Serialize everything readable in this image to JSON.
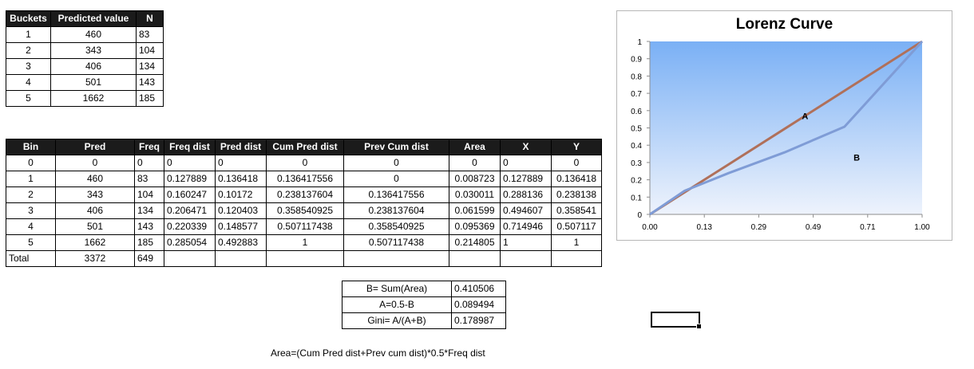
{
  "buckets": {
    "headers": [
      "Buckets",
      "Predicted value",
      "N"
    ],
    "rows": [
      [
        "1",
        "460",
        "83"
      ],
      [
        "2",
        "343",
        "104"
      ],
      [
        "3",
        "406",
        "134"
      ],
      [
        "4",
        "501",
        "143"
      ],
      [
        "5",
        "1662",
        "185"
      ]
    ]
  },
  "calc": {
    "headers": [
      "Bin",
      "Pred",
      "Freq",
      "Freq dist",
      "Pred dist",
      "Cum Pred dist",
      "Prev Cum dist",
      "Area",
      "X",
      "Y"
    ],
    "rows": [
      [
        "0",
        "0",
        "0",
        "0",
        "0",
        "0",
        "0",
        "0",
        "0",
        "0"
      ],
      [
        "1",
        "460",
        "83",
        "0.127889",
        "0.136418",
        "0.136417556",
        "0",
        "0.008723",
        "0.127889",
        "0.136418"
      ],
      [
        "2",
        "343",
        "104",
        "0.160247",
        "0.10172",
        "0.238137604",
        "0.136417556",
        "0.030011",
        "0.288136",
        "0.238138"
      ],
      [
        "3",
        "406",
        "134",
        "0.206471",
        "0.120403",
        "0.358540925",
        "0.238137604",
        "0.061599",
        "0.494607",
        "0.358541"
      ],
      [
        "4",
        "501",
        "143",
        "0.220339",
        "0.148577",
        "0.507117438",
        "0.358540925",
        "0.095369",
        "0.714946",
        "0.507117"
      ],
      [
        "5",
        "1662",
        "185",
        "0.285054",
        "0.492883",
        "1",
        "0.507117438",
        "0.214805",
        "1",
        "1"
      ]
    ],
    "total": [
      "Total",
      "3372",
      "649",
      "",
      "",
      "",
      "",
      "",
      "",
      ""
    ]
  },
  "gini": {
    "rows": [
      [
        "B= Sum(Area)",
        "0.410506"
      ],
      [
        "A=0.5-B",
        "0.089494"
      ],
      [
        "Gini= A/(A+B)",
        "0.178987"
      ]
    ]
  },
  "formula": "Area=(Cum Pred dist+Prev cum dist)*0.5*Freq dist",
  "chart_data": {
    "type": "line",
    "title": "Lorenz Curve",
    "xlim": [
      0,
      1
    ],
    "ylim": [
      0,
      1
    ],
    "x_tick_labels": [
      "0.00",
      "0.13",
      "0.29",
      "0.49",
      "0.71",
      "1.00"
    ],
    "y_tick_labels": [
      "0",
      "0.1",
      "0.2",
      "0.3",
      "0.4",
      "0.5",
      "0.6",
      "0.7",
      "0.8",
      "0.9",
      "1"
    ],
    "series": [
      {
        "x": [
          0,
          0.127889,
          0.288136,
          0.494607,
          0.714946,
          1
        ],
        "y": [
          0,
          0.127889,
          0.288136,
          0.494607,
          0.714946,
          1
        ],
        "color": "#b0705a"
      },
      {
        "x": [
          0,
          0.127889,
          0.288136,
          0.494607,
          0.714946,
          1
        ],
        "y": [
          0,
          0.136418,
          0.238138,
          0.358541,
          0.507117,
          1
        ],
        "color": "#7f9cd6"
      }
    ],
    "annotations": [
      {
        "text": "A",
        "x": 0.57,
        "y": 0.55
      },
      {
        "text": "B",
        "x": 0.76,
        "y": 0.31
      }
    ],
    "plot_gradient": [
      "#7ab0f5",
      "#eef3fc"
    ]
  }
}
